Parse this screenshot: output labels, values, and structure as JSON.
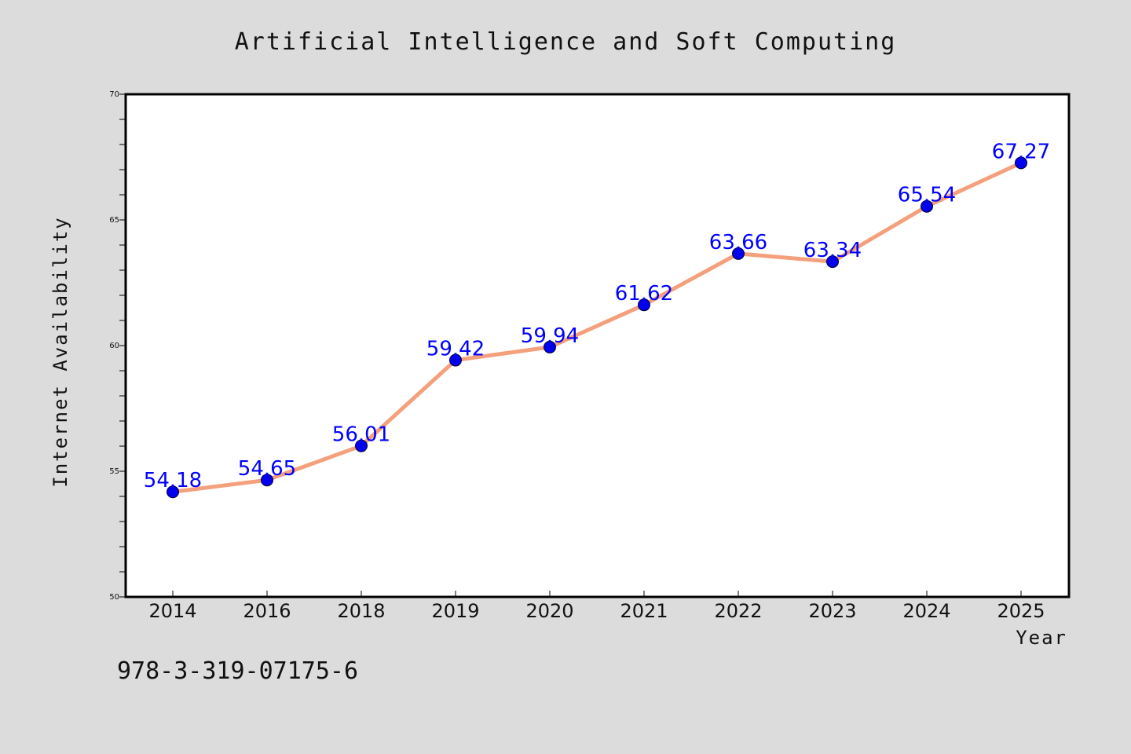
{
  "chart_data": {
    "type": "line",
    "title": "Artificial Intelligence and Soft Computing",
    "xlabel": "Year",
    "ylabel": "Internet Availability",
    "categories": [
      "2014",
      "2016",
      "2018",
      "2019",
      "2020",
      "2021",
      "2022",
      "2023",
      "2024",
      "2025"
    ],
    "series": [
      {
        "values": [
          54.18,
          54.65,
          56.01,
          59.42,
          59.94,
          61.62,
          63.66,
          63.34,
          65.54,
          67.27
        ],
        "labels": [
          "54.18",
          "54.65",
          "56.01",
          "59.42",
          "59.94",
          "61.62",
          "63.66",
          "63.34",
          "65.54",
          "67.27"
        ],
        "line_color": "#f4a07c",
        "marker_color": "#0000ee",
        "label_color": "#0000ff"
      }
    ],
    "ylim": [
      50,
      70
    ],
    "yticks": [
      "50",
      "55",
      "60",
      "65",
      "70"
    ],
    "grid": false,
    "legend": "none"
  },
  "footer": {
    "isbn": "978-3-319-07175-6"
  },
  "colors": {
    "background": "#dcdcdc",
    "plot_background": "#ffffff",
    "frame": "#000000"
  }
}
